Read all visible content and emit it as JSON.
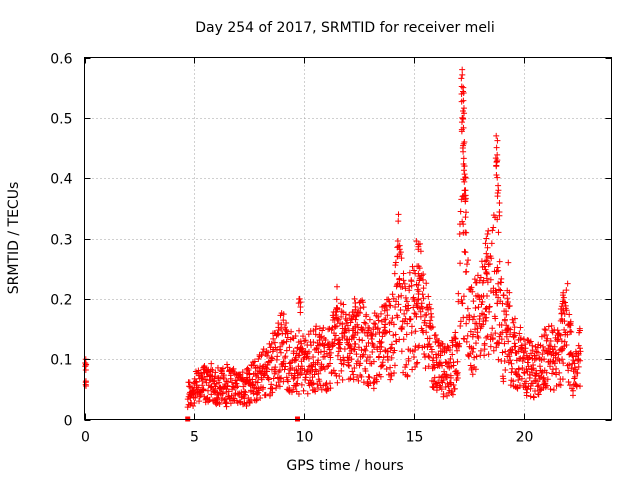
{
  "chart_data": {
    "type": "scatter",
    "title": "Day 254 of 2017, SRMTID for receiver meli",
    "xlabel": "GPS time / hours",
    "ylabel": "SRMTID / TECUs",
    "xlim": [
      0,
      24
    ],
    "ylim": [
      0,
      0.6
    ],
    "xticks": [
      0,
      5,
      10,
      15,
      20
    ],
    "yticks": [
      0,
      0.1,
      0.2,
      0.3,
      0.4,
      0.5,
      0.6
    ],
    "xtick_labels": [
      "0",
      "5",
      "10",
      "15",
      "20"
    ],
    "ytick_labels": [
      "0",
      "0.1",
      "0.2",
      "0.3",
      "0.4",
      "0.5",
      "0.6"
    ],
    "grid": true,
    "marker": "+",
    "color": "#ff0000",
    "zero_markers_x": [
      4.7,
      9.7
    ],
    "outline": [
      [
        0.0,
        0.07
      ],
      [
        0.05,
        0.09
      ],
      [
        0.1,
        0.05
      ],
      [
        4.7,
        0.04
      ],
      [
        5.0,
        0.05
      ],
      [
        5.5,
        0.06
      ],
      [
        6.0,
        0.05
      ],
      [
        6.5,
        0.06
      ],
      [
        7.0,
        0.05
      ],
      [
        7.5,
        0.06
      ],
      [
        8.0,
        0.07
      ],
      [
        8.5,
        0.09
      ],
      [
        9.0,
        0.12
      ],
      [
        9.5,
        0.09
      ],
      [
        10.0,
        0.09
      ],
      [
        10.5,
        0.1
      ],
      [
        11.0,
        0.1
      ],
      [
        11.5,
        0.13
      ],
      [
        12.0,
        0.12
      ],
      [
        12.5,
        0.14
      ],
      [
        13.0,
        0.11
      ],
      [
        13.5,
        0.12
      ],
      [
        14.0,
        0.14
      ],
      [
        14.3,
        0.2
      ],
      [
        14.6,
        0.15
      ],
      [
        15.0,
        0.17
      ],
      [
        15.2,
        0.22
      ],
      [
        15.5,
        0.16
      ],
      [
        16.0,
        0.09
      ],
      [
        16.5,
        0.08
      ],
      [
        17.0,
        0.1
      ],
      [
        17.2,
        0.35
      ],
      [
        17.5,
        0.14
      ],
      [
        18.0,
        0.16
      ],
      [
        18.3,
        0.2
      ],
      [
        18.7,
        0.25
      ],
      [
        19.0,
        0.14
      ],
      [
        19.5,
        0.12
      ],
      [
        20.0,
        0.09
      ],
      [
        20.5,
        0.08
      ],
      [
        21.0,
        0.1
      ],
      [
        21.5,
        0.11
      ],
      [
        22.0,
        0.15
      ],
      [
        22.3,
        0.07
      ],
      [
        22.6,
        0.11
      ]
    ],
    "spikes": [
      [
        14.3,
        0.34
      ],
      [
        15.2,
        0.29
      ],
      [
        17.2,
        0.58
      ],
      [
        17.25,
        0.55
      ],
      [
        17.2,
        0.5
      ],
      [
        17.3,
        0.46
      ],
      [
        17.3,
        0.42
      ],
      [
        17.35,
        0.38
      ],
      [
        18.3,
        0.3
      ],
      [
        18.75,
        0.47
      ],
      [
        18.8,
        0.43
      ],
      [
        18.85,
        0.38
      ],
      [
        19.3,
        0.26
      ],
      [
        9.8,
        0.2
      ],
      [
        11.5,
        0.22
      ],
      [
        12.3,
        0.2
      ],
      [
        21.8,
        0.21
      ]
    ]
  }
}
